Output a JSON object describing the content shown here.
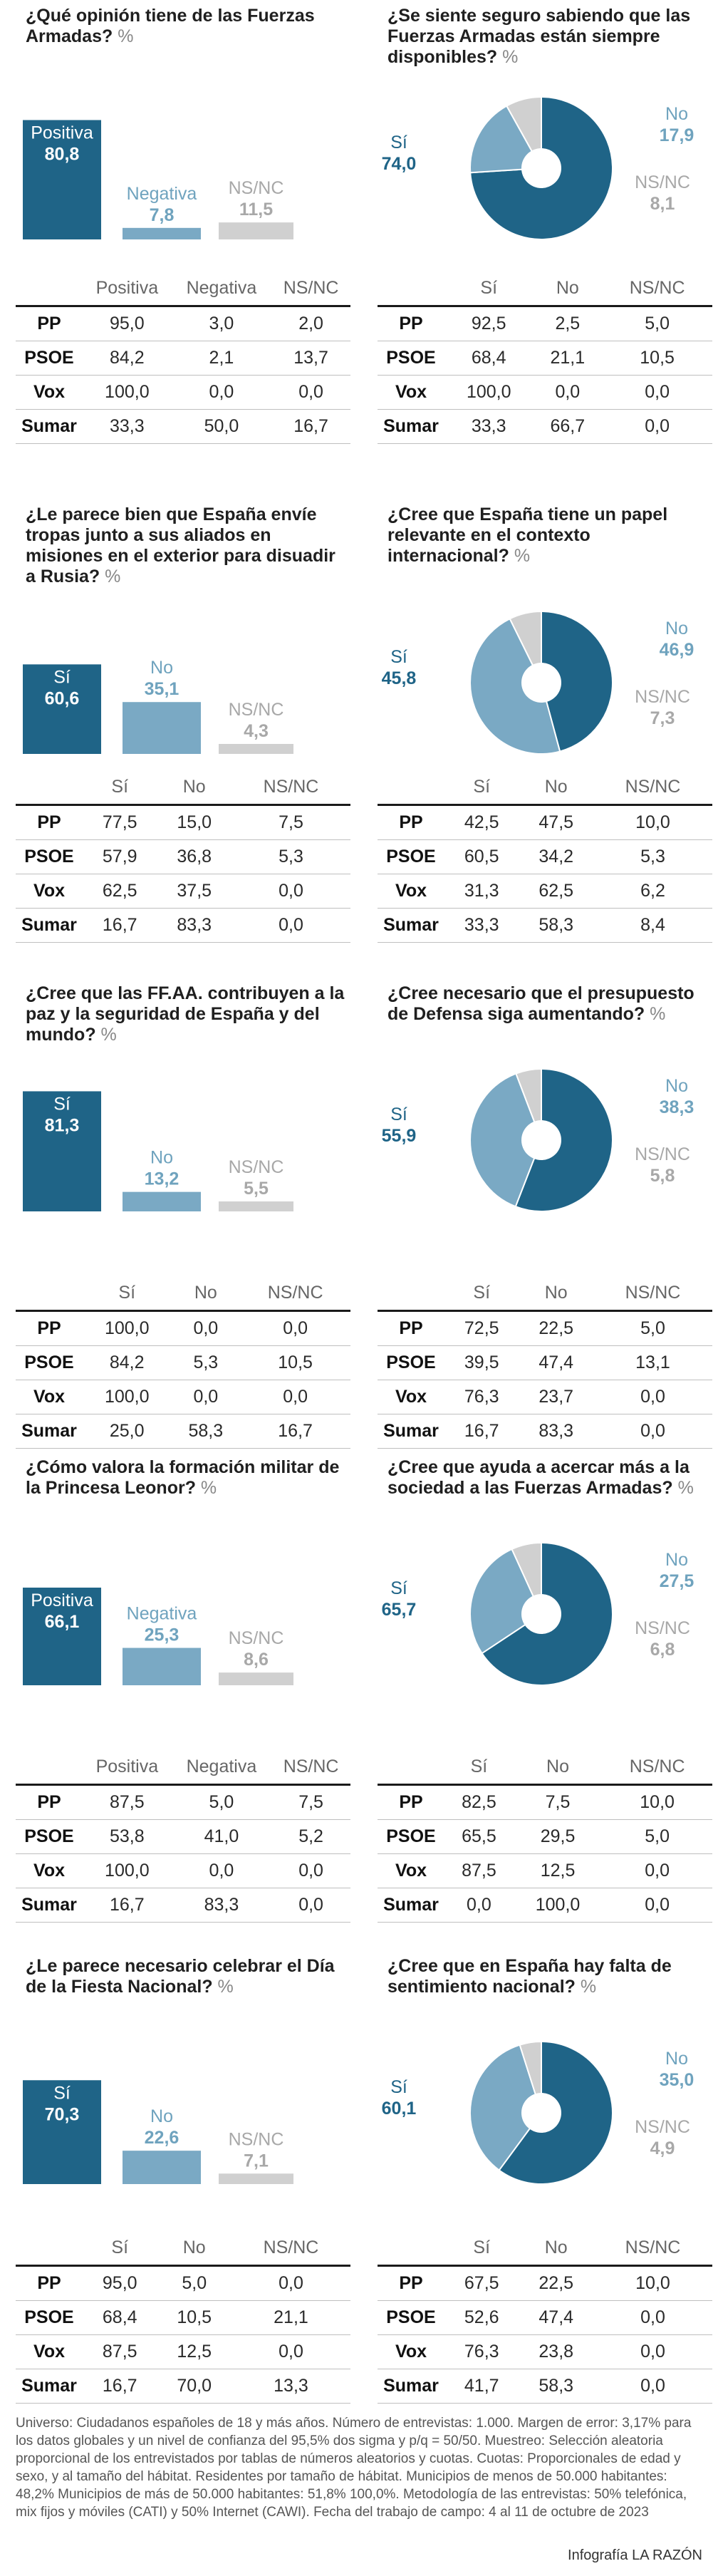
{
  "colors": {
    "dark": "#1f6487",
    "light": "#7aa9c4",
    "grey": "#d0d0d0",
    "label_dark": "#1f6487",
    "label_light": "#6fa3be",
    "label_grey": "#a8a8a8"
  },
  "panels": [
    {
      "question": "¿Qué opinión tiene de las Fuerzas Armadas?",
      "pct_mark": "%",
      "chart_data": {
        "type": "bar",
        "categories": [
          "Positiva",
          "Negativa",
          "NS/NC"
        ],
        "values": [
          80.8,
          7.8,
          11.5
        ]
      },
      "value_labels": [
        "80,8",
        "7,8",
        "11,5"
      ],
      "table": {
        "headers": [
          "",
          "Positiva",
          "Negativa",
          "NS/NC"
        ],
        "rows": [
          {
            "party": "PP",
            "values": [
              "95,0",
              "3,0",
              "2,0"
            ]
          },
          {
            "party": "PSOE",
            "values": [
              "84,2",
              "2,1",
              "13,7"
            ]
          },
          {
            "party": "Vox",
            "values": [
              "100,0",
              "0,0",
              "0,0"
            ]
          },
          {
            "party": "Sumar",
            "values": [
              "33,3",
              "50,0",
              "16,7"
            ]
          }
        ]
      }
    },
    {
      "question": "¿Se siente seguro sabiendo que las Fuerzas Armadas están siempre disponibles?",
      "pct_mark": "%",
      "chart_data": {
        "type": "pie",
        "categories": [
          "Sí",
          "No",
          "NS/NC"
        ],
        "values": [
          74.0,
          17.9,
          8.1
        ]
      },
      "value_labels": [
        "74,0",
        "17,9",
        "8,1"
      ],
      "table": {
        "headers": [
          "",
          "Sí",
          "No",
          "NS/NC"
        ],
        "rows": [
          {
            "party": "PP",
            "values": [
              "92,5",
              "2,5",
              "5,0"
            ]
          },
          {
            "party": "PSOE",
            "values": [
              "68,4",
              "21,1",
              "10,5"
            ]
          },
          {
            "party": "Vox",
            "values": [
              "100,0",
              "0,0",
              "0,0"
            ]
          },
          {
            "party": "Sumar",
            "values": [
              "33,3",
              "66,7",
              "0,0"
            ]
          }
        ]
      }
    },
    {
      "question": "¿Le parece bien que España envíe tropas junto a sus aliados en misiones en el exterior para disuadir a Rusia?",
      "pct_mark": "%",
      "chart_data": {
        "type": "bar",
        "categories": [
          "Sí",
          "No",
          "NS/NC"
        ],
        "values": [
          60.6,
          35.1,
          4.3
        ]
      },
      "value_labels": [
        "60,6",
        "35,1",
        "4,3"
      ],
      "table": {
        "headers": [
          "",
          "Sí",
          "No",
          "NS/NC"
        ],
        "rows": [
          {
            "party": "PP",
            "values": [
              "77,5",
              "15,0",
              "7,5"
            ]
          },
          {
            "party": "PSOE",
            "values": [
              "57,9",
              "36,8",
              "5,3"
            ]
          },
          {
            "party": "Vox",
            "values": [
              "62,5",
              "37,5",
              "0,0"
            ]
          },
          {
            "party": "Sumar",
            "values": [
              "16,7",
              "83,3",
              "0,0"
            ]
          }
        ]
      }
    },
    {
      "question": "¿Cree que España tiene un papel relevante en el contexto internacional?",
      "pct_mark": "%",
      "chart_data": {
        "type": "pie",
        "categories": [
          "Sí",
          "No",
          "NS/NC"
        ],
        "values": [
          45.8,
          46.9,
          7.3
        ]
      },
      "value_labels": [
        "45,8",
        "46,9",
        "7,3"
      ],
      "table": {
        "headers": [
          "",
          "Sí",
          "No",
          "NS/NC"
        ],
        "rows": [
          {
            "party": "PP",
            "values": [
              "42,5",
              "47,5",
              "10,0"
            ]
          },
          {
            "party": "PSOE",
            "values": [
              "60,5",
              "34,2",
              "5,3"
            ]
          },
          {
            "party": "Vox",
            "values": [
              "31,3",
              "62,5",
              "6,2"
            ]
          },
          {
            "party": "Sumar",
            "values": [
              "33,3",
              "58,3",
              "8,4"
            ]
          }
        ]
      }
    },
    {
      "question": "¿Cree que las FF.AA. contribuyen a la paz y la seguridad de España y del mundo?",
      "pct_mark": "%",
      "chart_data": {
        "type": "bar",
        "categories": [
          "Sí",
          "No",
          "NS/NC"
        ],
        "values": [
          81.3,
          13.2,
          5.5
        ]
      },
      "value_labels": [
        "81,3",
        "13,2",
        "5,5"
      ],
      "table": {
        "headers": [
          "",
          "Sí",
          "No",
          "NS/NC"
        ],
        "rows": [
          {
            "party": "PP",
            "values": [
              "100,0",
              "0,0",
              "0,0"
            ]
          },
          {
            "party": "PSOE",
            "values": [
              "84,2",
              "5,3",
              "10,5"
            ]
          },
          {
            "party": "Vox",
            "values": [
              "100,0",
              "0,0",
              "0,0"
            ]
          },
          {
            "party": "Sumar",
            "values": [
              "25,0",
              "58,3",
              "16,7"
            ]
          }
        ]
      }
    },
    {
      "question": "¿Cree necesario que el presupuesto de Defensa siga aumentando?",
      "pct_mark": "%",
      "chart_data": {
        "type": "pie",
        "categories": [
          "Sí",
          "No",
          "NS/NC"
        ],
        "values": [
          55.9,
          38.3,
          5.8
        ]
      },
      "value_labels": [
        "55,9",
        "38,3",
        "5,8"
      ],
      "table": {
        "headers": [
          "",
          "Sí",
          "No",
          "NS/NC"
        ],
        "rows": [
          {
            "party": "PP",
            "values": [
              "72,5",
              "22,5",
              "5,0"
            ]
          },
          {
            "party": "PSOE",
            "values": [
              "39,5",
              "47,4",
              "13,1"
            ]
          },
          {
            "party": "Vox",
            "values": [
              "76,3",
              "23,7",
              "0,0"
            ]
          },
          {
            "party": "Sumar",
            "values": [
              "16,7",
              "83,3",
              "0,0"
            ]
          }
        ]
      }
    },
    {
      "question": "¿Cómo valora la formación militar de la Princesa Leonor?",
      "pct_mark": "%",
      "chart_data": {
        "type": "bar",
        "categories": [
          "Positiva",
          "Negativa",
          "NS/NC"
        ],
        "values": [
          66.1,
          25.3,
          8.6
        ]
      },
      "value_labels": [
        "66,1",
        "25,3",
        "8,6"
      ],
      "table": {
        "headers": [
          "",
          "Positiva",
          "Negativa",
          "NS/NC"
        ],
        "rows": [
          {
            "party": "PP",
            "values": [
              "87,5",
              "5,0",
              "7,5"
            ]
          },
          {
            "party": "PSOE",
            "values": [
              "53,8",
              "41,0",
              "5,2"
            ]
          },
          {
            "party": "Vox",
            "values": [
              "100,0",
              "0,0",
              "0,0"
            ]
          },
          {
            "party": "Sumar",
            "values": [
              "16,7",
              "83,3",
              "0,0"
            ]
          }
        ]
      }
    },
    {
      "question": "¿Cree que ayuda a acercar más a la sociedad a las Fuerzas Armadas?",
      "pct_mark": "%",
      "chart_data": {
        "type": "pie",
        "categories": [
          "Sí",
          "No",
          "NS/NC"
        ],
        "values": [
          65.7,
          27.5,
          6.8
        ]
      },
      "value_labels": [
        "65,7",
        "27,5",
        "6,8"
      ],
      "table": {
        "headers": [
          "",
          "Sí",
          "No",
          "NS/NC"
        ],
        "rows": [
          {
            "party": "PP",
            "values": [
              "82,5",
              "7,5",
              "10,0"
            ]
          },
          {
            "party": "PSOE",
            "values": [
              "65,5",
              "29,5",
              "5,0"
            ]
          },
          {
            "party": "Vox",
            "values": [
              "87,5",
              "12,5",
              "0,0"
            ]
          },
          {
            "party": "Sumar",
            "values": [
              "0,0",
              "100,0",
              "0,0"
            ]
          }
        ]
      }
    },
    {
      "question": "¿Le parece necesario celebrar el Día de la Fiesta Nacional?",
      "pct_mark": "%",
      "chart_data": {
        "type": "bar",
        "categories": [
          "Sí",
          "No",
          "NS/NC"
        ],
        "values": [
          70.3,
          22.6,
          7.1
        ]
      },
      "value_labels": [
        "70,3",
        "22,6",
        "7,1"
      ],
      "table": {
        "headers": [
          "",
          "Sí",
          "No",
          "NS/NC"
        ],
        "rows": [
          {
            "party": "PP",
            "values": [
              "95,0",
              "5,0",
              "0,0"
            ]
          },
          {
            "party": "PSOE",
            "values": [
              "68,4",
              "10,5",
              "21,1"
            ]
          },
          {
            "party": "Vox",
            "values": [
              "87,5",
              "12,5",
              "0,0"
            ]
          },
          {
            "party": "Sumar",
            "values": [
              "16,7",
              "70,0",
              "13,3"
            ]
          }
        ]
      }
    },
    {
      "question": "¿Cree que en España hay falta de sentimiento nacional?",
      "pct_mark": "%",
      "chart_data": {
        "type": "pie",
        "categories": [
          "Sí",
          "No",
          "NS/NC"
        ],
        "values": [
          60.1,
          35.0,
          4.9
        ]
      },
      "value_labels": [
        "60,1",
        "35,0",
        "4,9"
      ],
      "table": {
        "headers": [
          "",
          "Sí",
          "No",
          "NS/NC"
        ],
        "rows": [
          {
            "party": "PP",
            "values": [
              "67,5",
              "22,5",
              "10,0"
            ]
          },
          {
            "party": "PSOE",
            "values": [
              "52,6",
              "47,4",
              "0,0"
            ]
          },
          {
            "party": "Vox",
            "values": [
              "76,3",
              "23,8",
              "0,0"
            ]
          },
          {
            "party": "Sumar",
            "values": [
              "41,7",
              "58,3",
              "0,0"
            ]
          }
        ]
      }
    }
  ],
  "footnote": "Universo: Ciudadanos españoles de 18 y más años. Número de entrevistas: 1.000. Margen de error: 3,17% para los datos globales y un nivel de confianza del 95,5% dos sigma y p/q = 50/50. Muestreo: Selección aleatoria proporcional de los entrevistados por tablas de números aleatorios y cuotas. Cuotas: Proporcionales de edad y sexo, y al tamaño del hábitat. Residentes por tamaño de hábitat. Municipios de menos de 50.000 habitantes: 48,2% Municipios de más de 50.000 habitantes: 51,8% 100,0%. Metodología de las entrevistas: 50% telefónica, mix fijos y móviles (CATI) y 50% Internet (CAWI). Fecha del trabajo de campo: 4 al 11 de octubre de 2023",
  "credit": "Infografía LA RAZÓN"
}
